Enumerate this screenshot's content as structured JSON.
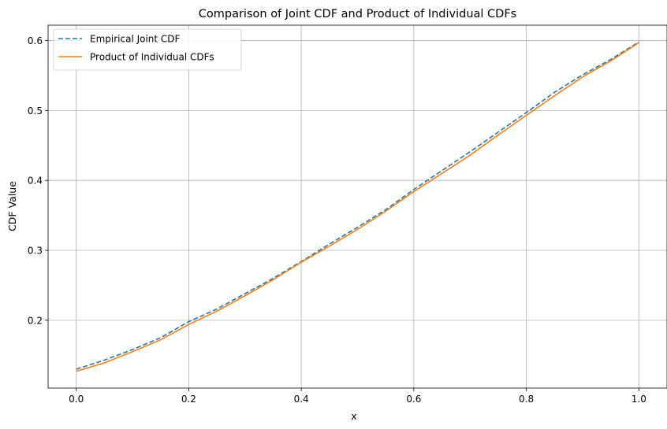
{
  "chart_data": {
    "type": "line",
    "title": "Comparison of Joint CDF and Product of Individual CDFs",
    "xlabel": "x",
    "ylabel": "CDF Value",
    "xlim": [
      -0.05,
      1.05
    ],
    "ylim": [
      0.103,
      0.622
    ],
    "xticks": [
      0.0,
      0.2,
      0.4,
      0.6,
      0.8,
      1.0
    ],
    "xtick_labels": [
      "0.0",
      "0.2",
      "0.4",
      "0.6",
      "0.8",
      "1.0"
    ],
    "yticks": [
      0.2,
      0.3,
      0.4,
      0.5,
      0.6
    ],
    "ytick_labels": [
      "0.2",
      "0.3",
      "0.4",
      "0.5",
      "0.6"
    ],
    "grid": true,
    "legend_position": "top-left",
    "x": [
      0.0,
      0.05,
      0.1,
      0.15,
      0.2,
      0.25,
      0.3,
      0.35,
      0.4,
      0.45,
      0.5,
      0.55,
      0.6,
      0.65,
      0.7,
      0.75,
      0.8,
      0.85,
      0.9,
      0.95,
      1.0
    ],
    "series": [
      {
        "name": "Empirical Joint CDF",
        "color": "#1f77b4",
        "dashed": true,
        "values": [
          0.13,
          0.143,
          0.158,
          0.175,
          0.198,
          0.216,
          0.238,
          0.26,
          0.284,
          0.309,
          0.333,
          0.358,
          0.387,
          0.414,
          0.441,
          0.469,
          0.497,
          0.526,
          0.551,
          0.573,
          0.598
        ]
      },
      {
        "name": "Product of Individual CDFs",
        "color": "#ff7f0e",
        "dashed": false,
        "values": [
          0.127,
          0.139,
          0.155,
          0.172,
          0.194,
          0.213,
          0.235,
          0.258,
          0.283,
          0.306,
          0.33,
          0.356,
          0.384,
          0.41,
          0.436,
          0.465,
          0.493,
          0.521,
          0.548,
          0.571,
          0.597
        ]
      }
    ]
  }
}
